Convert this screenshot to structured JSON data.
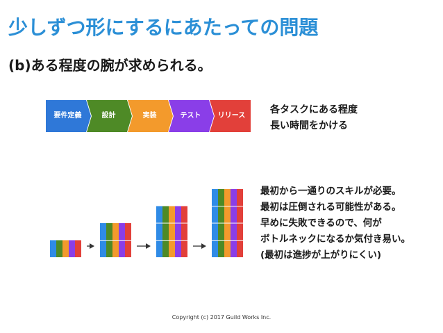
{
  "slide": {
    "title": "少しずつ形にするにあたっての問題",
    "subtitle": "(b)ある程度の腕が求められる。",
    "process_steps": [
      {
        "label": "要件定義",
        "color": "#2f78d8"
      },
      {
        "label": "設計",
        "color": "#4e8a26"
      },
      {
        "label": "実装",
        "color": "#f39a2c"
      },
      {
        "label": "テスト",
        "color": "#8a3ee8"
      },
      {
        "label": "リリース",
        "color": "#e2403a"
      }
    ],
    "note_top": [
      "各タスクにある程度",
      "長い時間をかける"
    ],
    "note_bottom": [
      "最初から一通りのスキルが必要。",
      "最初は圧倒される可能性がある。",
      "早めに失敗できるので、何が",
      "ボトルネックになるか気付き易い。",
      "(最初は進捗が上がりにくい)"
    ],
    "stack_colors": [
      "#2f8be6",
      "#4e8a26",
      "#f39a2c",
      "#8a3ee8",
      "#e2403a"
    ],
    "stack_levels": [
      1,
      2,
      3,
      4
    ],
    "copyright": "Copyright (c) 2017 Guild Works Inc."
  }
}
